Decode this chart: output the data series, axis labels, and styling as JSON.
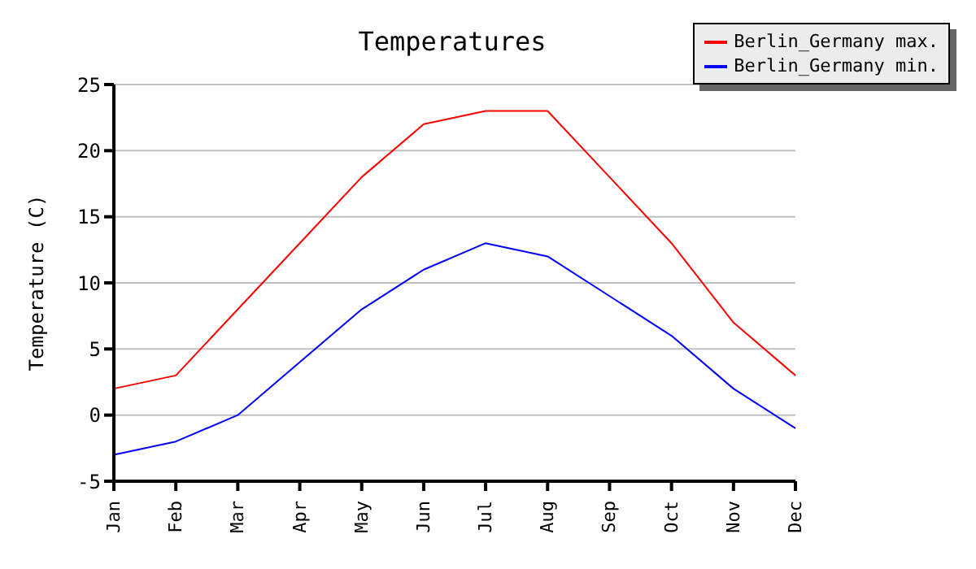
{
  "chart_data": {
    "type": "line",
    "title": "Temperatures",
    "ylabel": "Temperature (C)",
    "categories": [
      "Jan",
      "Feb",
      "Mar",
      "Apr",
      "May",
      "Jun",
      "Jul",
      "Aug",
      "Sep",
      "Oct",
      "Nov",
      "Dec"
    ],
    "series": [
      {
        "name": "Berlin_Germany max.",
        "color": "#ff0000",
        "values": [
          2,
          3,
          8,
          13,
          18,
          22,
          23,
          23,
          18,
          13,
          7,
          3
        ]
      },
      {
        "name": "Berlin_Germany min.",
        "color": "#0000ff",
        "values": [
          -3,
          -2,
          0,
          4,
          8,
          11,
          13,
          12,
          9,
          6,
          2,
          -1
        ]
      }
    ],
    "ylim": [
      -5,
      25
    ],
    "yticks": [
      -5,
      0,
      5,
      10,
      15,
      20,
      25
    ],
    "grid": "y",
    "legend": "top right",
    "marker": "none",
    "line_style": "solid"
  }
}
